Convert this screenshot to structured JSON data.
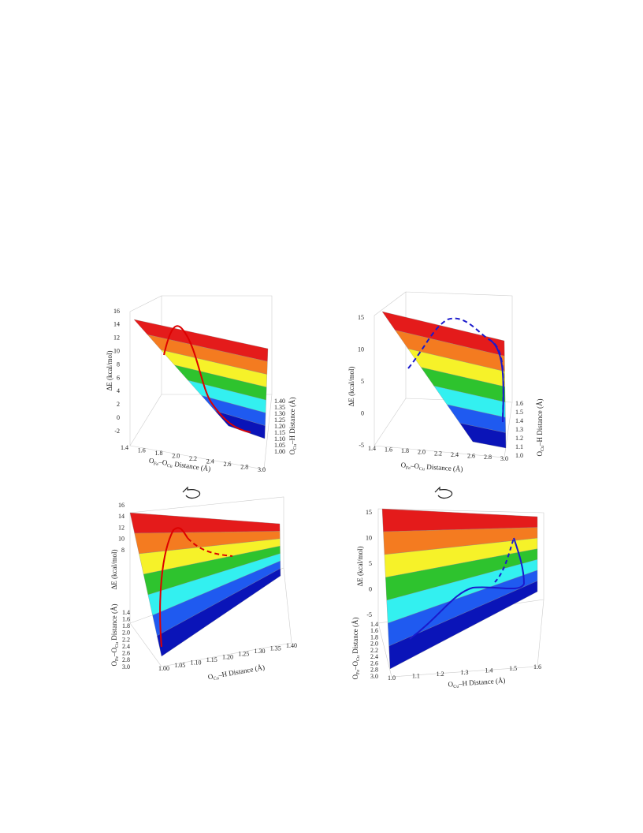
{
  "figure": {
    "panels": [
      {
        "axes": [
          {
            "label": [
              "ΔE (kcal/mol)"
            ],
            "ticks": [
              "16",
              "14",
              "12",
              "10",
              "8",
              "6",
              "4",
              "2",
              "0",
              "-2"
            ]
          },
          {
            "label": [
              "O",
              "Fe",
              "–O",
              "Cu",
              " Distance (Å)"
            ],
            "ticks": [
              "1.4",
              "1.6",
              "1.8",
              "2.0",
              "2.2",
              "2.4",
              "2.6",
              "2.8",
              "3.0"
            ]
          },
          {
            "label": [
              "O",
              "Cu",
              "–H  Distance (Å)"
            ],
            "ticks": [
              "1.40",
              "1.35",
              "1.30",
              "1.25",
              "1.20",
              "1.15",
              "1.10",
              "1.05",
              "1.00"
            ]
          }
        ]
      },
      {
        "axes": [
          {
            "label": [
              "ΔE (kcal/mol)"
            ],
            "ticks": [
              "15",
              "10",
              "5",
              "0",
              "-5"
            ]
          },
          {
            "label": [
              "O",
              "Fe",
              "–O",
              "Cu",
              " Distance (Å)"
            ],
            "ticks": [
              "1.4",
              "1.6",
              "1.8",
              "2.0",
              "2.2",
              "2.4",
              "2.6",
              "2.8",
              "3.0"
            ]
          },
          {
            "label": [
              "O",
              "Cu",
              "–H  Distance (Å)"
            ],
            "ticks": [
              "1.6",
              "1.5",
              "1.4",
              "1.3",
              "1.2",
              "1.1",
              "1.0"
            ]
          }
        ]
      },
      {
        "axes": [
          {
            "label": [
              "ΔE (kcal/mol)"
            ],
            "ticks": [
              "16",
              "14",
              "12",
              "10",
              "8"
            ]
          },
          {
            "label": [
              "O",
              "Fe",
              "–O",
              "Cu",
              " Distance (Å)"
            ],
            "ticks": [
              "1.4",
              "1.6",
              "1.8",
              "2.0",
              "2.2",
              "2.4",
              "2.6",
              "2.8",
              "3.0"
            ]
          },
          {
            "label": [
              "O",
              "Cu",
              "–H  Distance (Å)"
            ],
            "ticks": [
              "1.00",
              "1.05",
              "1.10",
              "1.15",
              "1.20",
              "1.25",
              "1.30",
              "1.35",
              "1.40"
            ]
          }
        ]
      },
      {
        "axes": [
          {
            "label": [
              "ΔE (kcal/mol)"
            ],
            "ticks": [
              "15",
              "10",
              "5",
              "0",
              "-5"
            ]
          },
          {
            "label": [
              "O",
              "Fe",
              "–O",
              "Cu",
              "  Distance (Å)"
            ],
            "ticks": [
              "1.4",
              "1.6",
              "1.8",
              "2.0",
              "2.2",
              "2.4",
              "2.6",
              "2.8",
              "3.0"
            ]
          },
          {
            "label": [
              "O",
              "Cu",
              "–H  Distance (Å)"
            ],
            "ticks": [
              "1.0",
              "1.1",
              "1.2",
              "1.3",
              "1.4",
              "1.5",
              "1.6"
            ]
          }
        ]
      }
    ]
  }
}
